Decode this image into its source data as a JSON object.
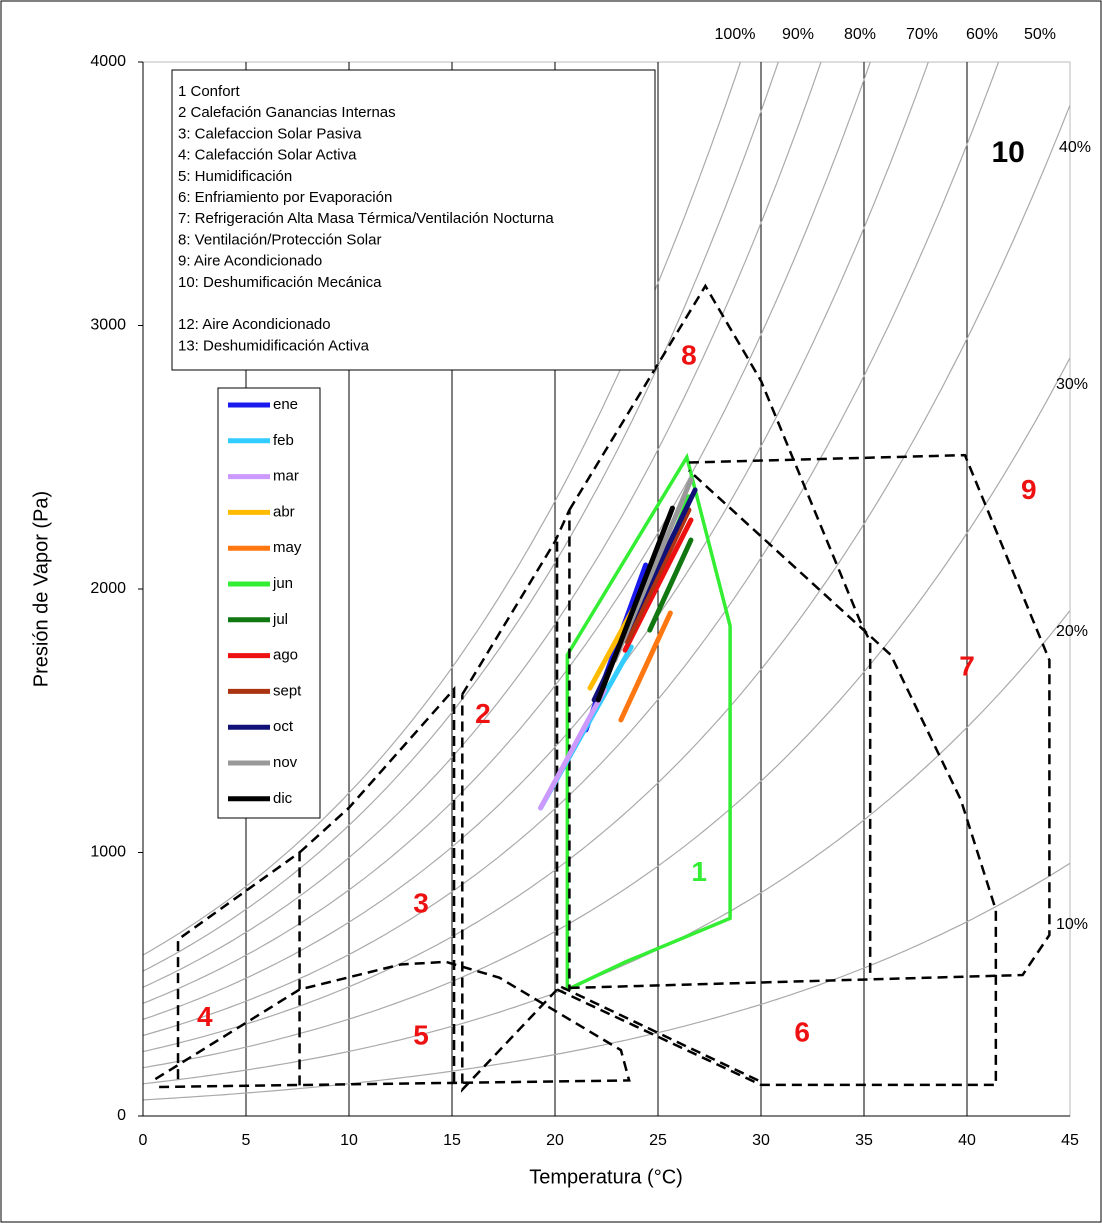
{
  "chart_data": {
    "type": "line",
    "xlabel": "Temperatura (°C)",
    "ylabel": "Presión de Vapor (Pa)",
    "xlim": [
      0,
      45
    ],
    "xticks": [
      0,
      5,
      10,
      15,
      20,
      25,
      30,
      35,
      40,
      45
    ],
    "ylim": [
      0,
      4000
    ],
    "yticks": [
      0,
      1000,
      2000,
      3000,
      4000
    ],
    "grid": true,
    "notes": [
      "1 Confort",
      "2 Calefación Ganancias Internas",
      "3: Calefaccion Solar Pasiva",
      "4: Calefacción Solar Activa",
      "5: Humidificación",
      "6: Enfriamiento por Evaporación",
      "7: Refrigeración Alta Masa Térmica/Ventilación Nocturna",
      "8: Ventilación/Protección Solar",
      "9: Aire Acondicionado",
      "10: Deshumificación Mecánica",
      "12: Aire Acondicionado",
      "13: Deshumidificación Activa"
    ],
    "rh_lines": [
      {
        "value": 100,
        "label": "100%"
      },
      {
        "value": 90,
        "label": "90%"
      },
      {
        "value": 80,
        "label": "80%"
      },
      {
        "value": 70,
        "label": "70%"
      },
      {
        "value": 60,
        "label": "60%"
      },
      {
        "value": 50,
        "label": "50%"
      },
      {
        "value": 40,
        "label": "40%"
      },
      {
        "value": 30,
        "label": "30%"
      },
      {
        "value": 20,
        "label": "20%"
      },
      {
        "value": 10,
        "label": "10%"
      }
    ],
    "zones": [
      {
        "label": "1",
        "color": "#33ee33",
        "dashed": false,
        "x": [
          20.6,
          20.6,
          26.4,
          28.5,
          28.5,
          23.4,
          20.6
        ],
        "y": [
          480,
          1750,
          2500,
          1860,
          750,
          584,
          480
        ]
      },
      {
        "label": "2",
        "color": "#000000",
        "dashed": true,
        "x": [
          15.5,
          20.0,
          20.7,
          20.7
        ],
        "y": [
          1600,
          2180,
          2300,
          480
        ]
      },
      {
        "label": "3",
        "color": "#000000",
        "dashed": true,
        "x": [
          7.6,
          10.0,
          15.1,
          15.1
        ],
        "y": [
          1000,
          1170,
          1620,
          110
        ]
      },
      {
        "label": "4",
        "color": "#000000",
        "dashed": true,
        "x": [
          1.7,
          1.7,
          7.6,
          7.6
        ],
        "y": [
          140,
          670,
          1000,
          100
        ]
      },
      {
        "label": "5",
        "color": "#000000",
        "dashed": true,
        "x": [
          0.6,
          7.6,
          12.5,
          14.7,
          17.3,
          23.2,
          23.6,
          0.6
        ],
        "y": [
          140,
          480,
          575,
          585,
          525,
          250,
          135,
          110
        ]
      },
      {
        "label": "6",
        "color": "#000000",
        "dashed": true,
        "x": [
          20.1,
          30.0,
          41.4,
          41.4,
          39.7,
          36.3,
          26.5
        ],
        "y": [
          480,
          118,
          118,
          782,
          1200,
          1750,
          2450
        ]
      },
      {
        "label": "7",
        "color": "#000000",
        "dashed": true,
        "x": [
          26.5,
          39.9,
          44.0,
          44.0,
          42.7,
          20.7
        ],
        "y": [
          2480,
          2508,
          1730,
          687,
          535,
          486
        ]
      },
      {
        "label": "8",
        "color": "#000000",
        "dashed": true,
        "x": [
          20.7,
          27.3,
          30.0,
          34.8,
          35.3,
          35.3
        ],
        "y": [
          2300,
          3150,
          2790,
          1880,
          1800,
          520
        ]
      },
      {
        "label": "9",
        "color": "#000000",
        "dashed": true,
        "x": [
          20.1,
          20.1,
          15.5,
          15.5
        ],
        "y": [
          2180,
          480,
          100,
          1600
        ]
      },
      {
        "label": "10",
        "color": "#000000",
        "dashed": true,
        "x": [
          20.3,
          30.0
        ],
        "y": [
          490,
          130
        ]
      }
    ],
    "series": [
      {
        "name": "ene",
        "color": "#1a1aee",
        "x": [
          21.5,
          24.4
        ],
        "values": [
          1465,
          2091
        ]
      },
      {
        "name": "feb",
        "color": "#33ccff",
        "x": [
          19.3,
          23.7
        ],
        "values": [
          1169,
          1780
        ]
      },
      {
        "name": "mar",
        "color": "#cc99ff",
        "x": [
          19.3,
          22.4
        ],
        "values": [
          1169,
          1617
        ]
      },
      {
        "name": "abr",
        "color": "#ffbb00",
        "x": [
          21.7,
          25.1
        ],
        "values": [
          1624,
          2110
        ]
      },
      {
        "name": "may",
        "color": "#ff7711",
        "x": [
          23.2,
          25.6
        ],
        "values": [
          1503,
          1909
        ]
      },
      {
        "name": "jun",
        "color": "#33ee33",
        "x": [
          24.5,
          26.5
        ],
        "values": [
          1950,
          2350
        ]
      },
      {
        "name": "jul",
        "color": "#117711",
        "x": [
          24.6,
          26.6
        ],
        "values": [
          1844,
          2186
        ]
      },
      {
        "name": "ago",
        "color": "#ee1111",
        "x": [
          23.4,
          26.6
        ],
        "values": [
          1768,
          2262
        ]
      },
      {
        "name": "sept",
        "color": "#aa3311",
        "x": [
          23.5,
          26.5
        ],
        "values": [
          1800,
          2300
        ]
      },
      {
        "name": "oct",
        "color": "#111177",
        "x": [
          21.9,
          26.8
        ],
        "values": [
          1579,
          2376
        ]
      },
      {
        "name": "nov",
        "color": "#999999",
        "x": [
          22.9,
          26.6
        ],
        "values": [
          1730,
          2414
        ]
      },
      {
        "name": "dic",
        "color": "#000000",
        "x": [
          22.1,
          25.7
        ],
        "values": [
          1579,
          2307
        ]
      }
    ]
  }
}
